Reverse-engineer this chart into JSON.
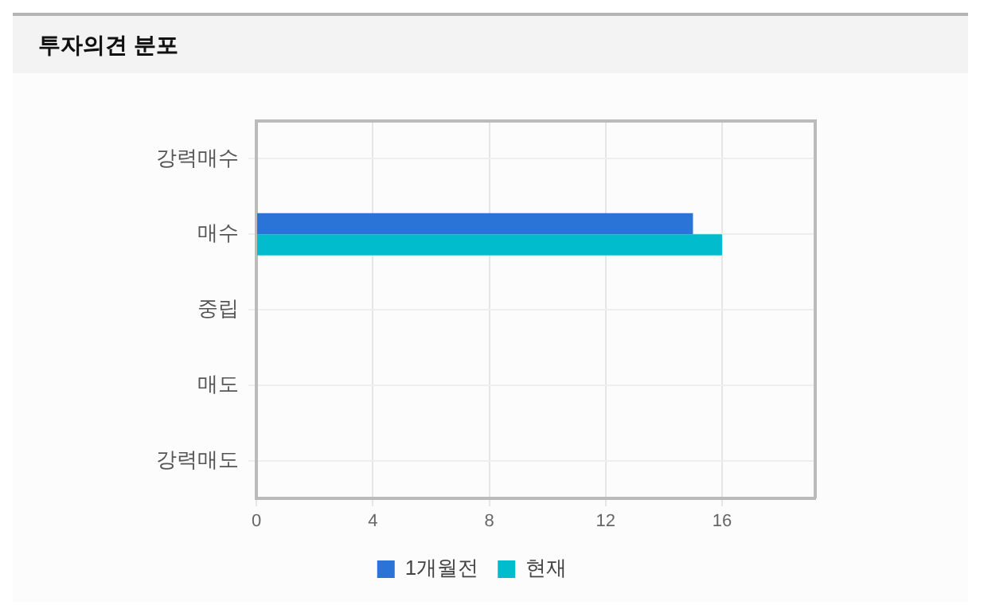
{
  "chart_data": {
    "type": "bar",
    "orientation": "horizontal",
    "title": "투자의견 분포",
    "categories": [
      "강력매수",
      "매수",
      "중립",
      "매도",
      "강력매도"
    ],
    "series": [
      {
        "name": "1개월전",
        "color": "#2a74d8",
        "values": [
          0,
          15,
          0,
          0,
          0
        ]
      },
      {
        "name": "현재",
        "color": "#00bccc",
        "values": [
          0,
          16,
          0,
          0,
          0
        ]
      }
    ],
    "xlim": [
      0,
      19.2
    ],
    "xticks": [
      0,
      4,
      8,
      12,
      16
    ],
    "grid": true,
    "legend": "bottom"
  }
}
